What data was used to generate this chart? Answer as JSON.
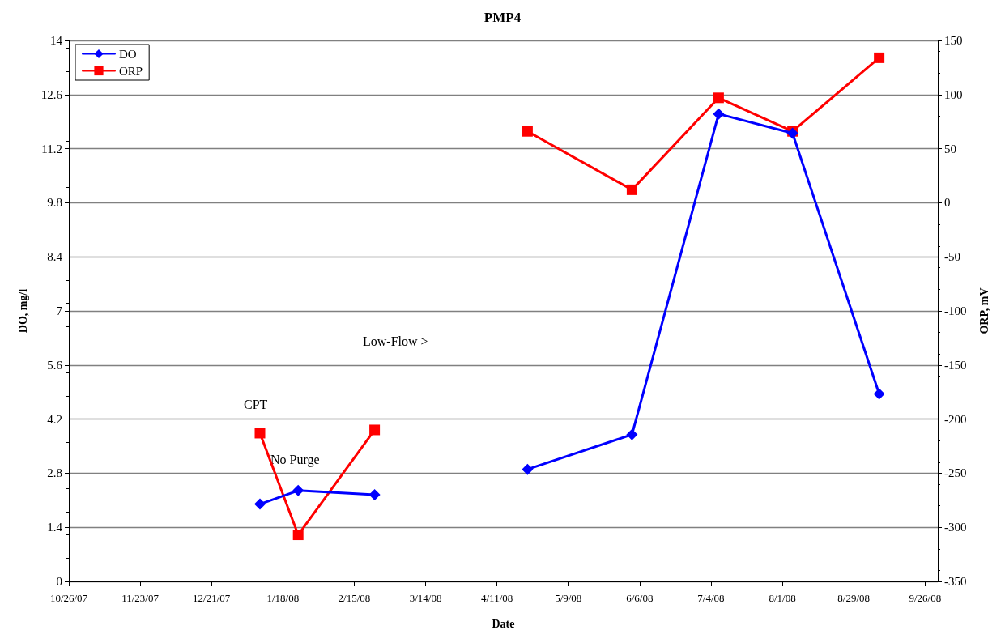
{
  "chart_data": {
    "type": "line",
    "title": "PMP4",
    "xlabel": "Date",
    "ylabel": "DO, mg/l",
    "y2label": "ORP, mV",
    "xlim": [
      "2007-10-26",
      "2008-10-01"
    ],
    "xticks": [
      {
        "value": "2007-10-26",
        "label": "10/26/07"
      },
      {
        "value": "2007-11-23",
        "label": "11/23/07"
      },
      {
        "value": "2007-12-21",
        "label": "12/21/07"
      },
      {
        "value": "2008-01-18",
        "label": "1/18/08"
      },
      {
        "value": "2008-02-15",
        "label": "2/15/08"
      },
      {
        "value": "2008-03-14",
        "label": "3/14/08"
      },
      {
        "value": "2008-04-11",
        "label": "4/11/08"
      },
      {
        "value": "2008-05-09",
        "label": "5/9/08"
      },
      {
        "value": "2008-06-06",
        "label": "6/6/08"
      },
      {
        "value": "2008-07-04",
        "label": "7/4/08"
      },
      {
        "value": "2008-08-01",
        "label": "8/1/08"
      },
      {
        "value": "2008-08-29",
        "label": "8/29/08"
      },
      {
        "value": "2008-09-26",
        "label": "9/26/08"
      }
    ],
    "ylim": [
      0,
      14
    ],
    "yticks": [
      0,
      1.4,
      2.8,
      4.2,
      5.6,
      7,
      8.4,
      9.8,
      11.2,
      12.6,
      14
    ],
    "y2lim": [
      -350,
      150
    ],
    "y2ticks": [
      -350,
      -300,
      -250,
      -200,
      -150,
      -100,
      -50,
      0,
      50,
      100,
      150
    ],
    "x": [
      "2008-01-09",
      "2008-01-24",
      "2008-02-23",
      "2008-03-24",
      "2008-04-23",
      "2008-06-03",
      "2008-07-07",
      "2008-08-05",
      "2008-09-08"
    ],
    "series": [
      {
        "name": "DO",
        "color": "#0000ff",
        "marker": "diamond",
        "values": [
          2.0,
          2.35,
          2.24,
          null,
          2.9,
          3.8,
          12.1,
          11.6,
          4.85
        ]
      },
      {
        "name": "ORP",
        "color": "#ff0000",
        "marker": "square",
        "axis": "y2",
        "values": [
          -213,
          -307,
          -210,
          null,
          66,
          12,
          97,
          66,
          134
        ]
      }
    ],
    "grid": "y",
    "legend": "top left",
    "line_style": "solid",
    "annotations": [
      "CPT",
      "No Purge",
      "Low-Flow >"
    ]
  }
}
